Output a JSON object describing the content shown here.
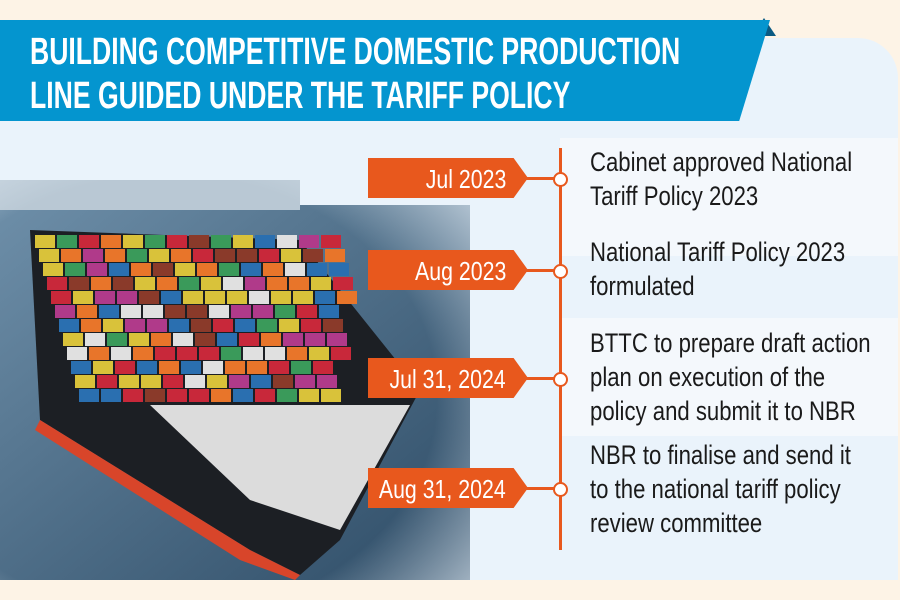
{
  "title": {
    "line1": "BUILDING COMPETITIVE DOMESTIC PRODUCTION",
    "line2": "LINE GUIDED UNDER THE TARIFF POLICY"
  },
  "colors": {
    "banner": "#0495cf",
    "accent": "#e8581d",
    "background": "#eaf3fb"
  },
  "timeline": [
    {
      "date": "Jul 2023",
      "lines": [
        "Cabinet approved National",
        "Tariff Policy 2023"
      ]
    },
    {
      "date": "Aug 2023",
      "lines": [
        "National Tariff Policy 2023",
        "formulated"
      ]
    },
    {
      "date": "Jul 31, 2024",
      "lines": [
        "BTTC to prepare draft action",
        "plan on execution of the",
        "policy and submit it to NBR"
      ]
    },
    {
      "date": "Aug 31, 2024",
      "lines": [
        "NBR to finalise and send it",
        "to the national tariff policy",
        "review committee"
      ]
    }
  ]
}
